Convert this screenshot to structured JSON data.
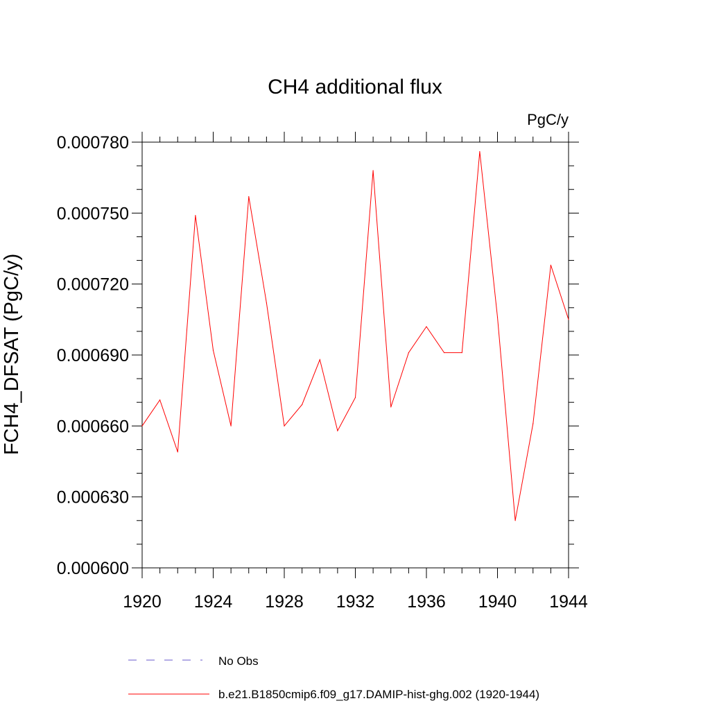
{
  "chart_data": {
    "type": "line",
    "title": "CH4 additional flux",
    "units_label": "PgC/y",
    "ylabel": "FCH4_DFSAT  (PgC/y)",
    "xlabel": "",
    "xlim": [
      1920,
      1944
    ],
    "ylim": [
      0.0006,
      0.00078
    ],
    "x_ticks": [
      "1920",
      "1924",
      "1928",
      "1932",
      "1936",
      "1940",
      "1944"
    ],
    "y_ticks": [
      "0.000600",
      "0.000630",
      "0.000660",
      "0.000690",
      "0.000720",
      "0.000750",
      "0.000780"
    ],
    "grid": false,
    "legend_position": "bottom",
    "series": [
      {
        "name": "b.e21.B1850cmip6.f09_g17.DAMIP-hist-ghg.002 (1920-1944)",
        "color": "#ff0000",
        "style": "solid",
        "x": [
          1920,
          1921,
          1922,
          1923,
          1924,
          1925,
          1926,
          1927,
          1928,
          1929,
          1930,
          1931,
          1932,
          1933,
          1934,
          1935,
          1936,
          1937,
          1938,
          1939,
          1940,
          1941,
          1942,
          1943,
          1944
        ],
        "y": [
          0.00066,
          0.000671,
          0.000649,
          0.000749,
          0.000692,
          0.00066,
          0.000757,
          0.000712,
          0.00066,
          0.000669,
          0.000688,
          0.000658,
          0.000672,
          0.000768,
          0.000668,
          0.000691,
          0.000702,
          0.000691,
          0.000691,
          0.000776,
          0.000706,
          0.00062,
          0.000661,
          0.000728,
          0.000705
        ]
      }
    ],
    "legend": [
      {
        "label": "No Obs",
        "color": "#6a5acd",
        "style": "dashed"
      },
      {
        "label": "b.e21.B1850cmip6.f09_g17.DAMIP-hist-ghg.002 (1920-1944)",
        "color": "#ff0000",
        "style": "solid"
      }
    ]
  }
}
